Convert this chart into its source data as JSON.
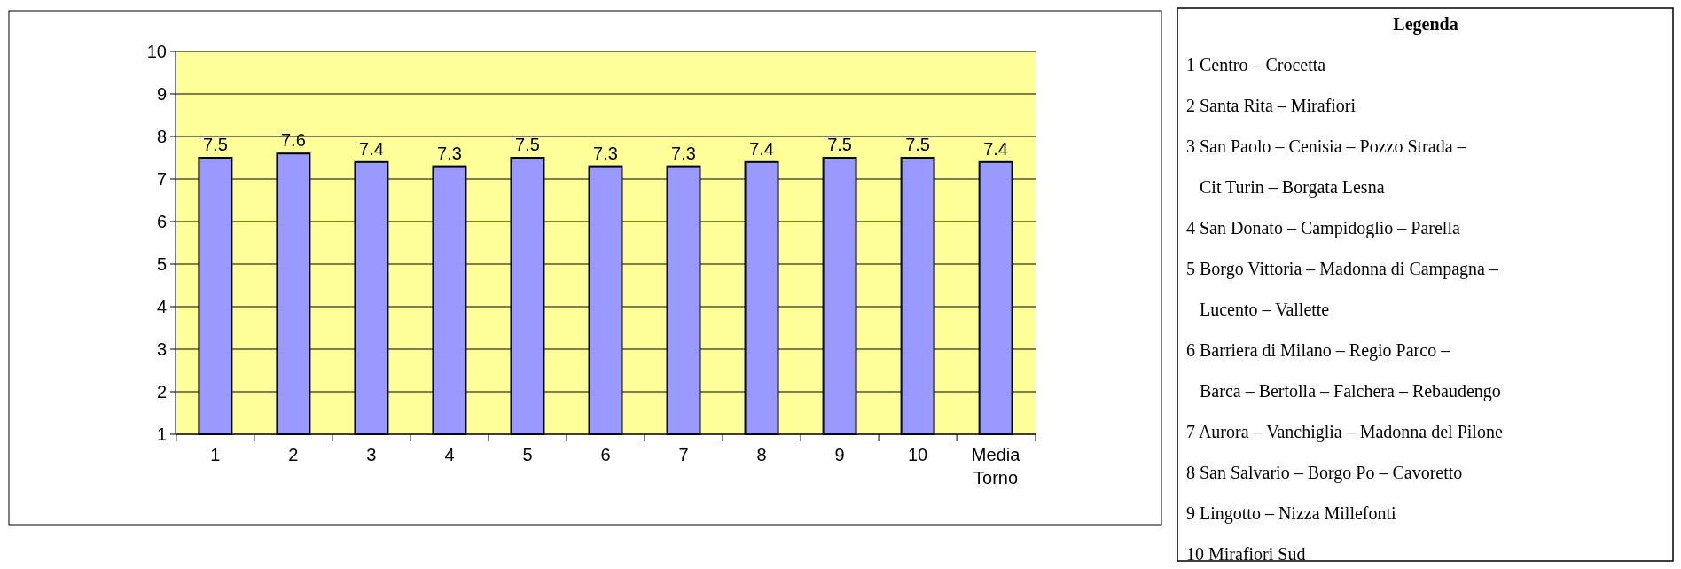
{
  "chart_data": {
    "type": "bar",
    "categories": [
      "1",
      "2",
      "3",
      "4",
      "5",
      "6",
      "7",
      "8",
      "9",
      "10",
      "Media Torno"
    ],
    "values": [
      7.5,
      7.6,
      7.4,
      7.3,
      7.5,
      7.3,
      7.3,
      7.4,
      7.5,
      7.5,
      7.4
    ],
    "color": "#9999ff",
    "ylim": [
      1,
      10
    ],
    "yticks": [
      1,
      2,
      3,
      4,
      5,
      6,
      7,
      8,
      9,
      10
    ],
    "grid": "y",
    "data_labels": true,
    "annotations": [
      "Legenda",
      "1 Centro – Crocetta",
      "2 Santa Rita – Mirafiori",
      "3 San Paolo – Cenisia – Pozzo Strada –\nCit Turin – Borgata Lesna",
      "4 San Donato – Campidoglio – Parella",
      "5 Borgo Vittoria – Madonna di Campagna –\nLucento – Vallette",
      "6 Barriera di Milano – Regio Parco –\nBarca – Bertolla – Falchera – Rebaudengo",
      "7 Aurora – Vanchiglia – Madonna del Pilone",
      "8 San Salvario – Borgo Po – Cavoretto",
      "9 Lingotto – Nizza Millefonti",
      "10 Mirafiori Sud"
    ]
  }
}
